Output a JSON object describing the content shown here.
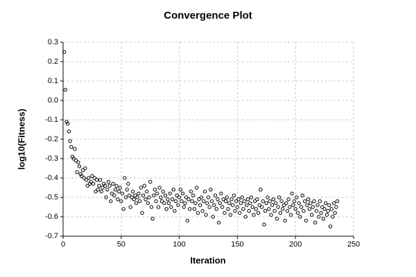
{
  "chart_data": {
    "type": "scatter",
    "title": "Convergence Plot",
    "x_label": "Iteration",
    "y_label": "log10(Fitness)",
    "x": [
      1,
      2,
      3,
      4,
      5,
      6,
      7,
      8,
      9,
      10,
      11,
      12,
      13,
      14,
      15,
      16,
      17,
      18,
      19,
      20,
      21,
      22,
      23,
      24,
      25,
      26,
      27,
      28,
      29,
      30,
      31,
      32,
      33,
      34,
      35,
      36,
      37,
      38,
      39,
      40,
      41,
      42,
      43,
      44,
      45,
      46,
      47,
      48,
      49,
      50,
      51,
      52,
      53,
      54,
      55,
      56,
      57,
      58,
      59,
      60,
      61,
      62,
      63,
      64,
      65,
      66,
      67,
      68,
      69,
      70,
      71,
      72,
      73,
      74,
      75,
      76,
      77,
      78,
      79,
      80,
      81,
      82,
      83,
      84,
      85,
      86,
      87,
      88,
      89,
      90,
      91,
      92,
      93,
      94,
      95,
      96,
      97,
      98,
      99,
      100,
      101,
      102,
      103,
      104,
      105,
      106,
      107,
      108,
      109,
      110,
      111,
      112,
      113,
      114,
      115,
      116,
      117,
      118,
      119,
      120,
      121,
      122,
      123,
      124,
      125,
      126,
      127,
      128,
      129,
      130,
      131,
      132,
      133,
      134,
      135,
      136,
      137,
      138,
      139,
      140,
      141,
      142,
      143,
      144,
      145,
      146,
      147,
      148,
      149,
      150,
      151,
      152,
      153,
      154,
      155,
      156,
      157,
      158,
      159,
      160,
      161,
      162,
      163,
      164,
      165,
      166,
      167,
      168,
      169,
      170,
      171,
      172,
      173,
      174,
      175,
      176,
      177,
      178,
      179,
      180,
      181,
      182,
      183,
      184,
      185,
      186,
      187,
      188,
      189,
      190,
      191,
      192,
      193,
      194,
      195,
      196,
      197,
      198,
      199,
      200,
      201,
      202,
      203,
      204,
      205,
      206,
      207,
      208,
      209,
      210,
      211,
      212,
      213,
      214,
      215,
      216,
      217,
      218,
      219,
      220,
      221,
      222,
      223,
      224,
      225,
      226,
      227,
      228,
      229,
      230,
      231,
      232,
      233,
      234,
      235,
      236
    ],
    "values": [
      0.25,
      0.055,
      -0.11,
      -0.12,
      -0.16,
      -0.21,
      -0.24,
      -0.29,
      -0.3,
      -0.25,
      -0.31,
      -0.37,
      -0.32,
      -0.34,
      -0.38,
      -0.39,
      -0.36,
      -0.4,
      -0.35,
      -0.41,
      -0.44,
      -0.4,
      -0.43,
      -0.42,
      -0.39,
      -0.43,
      -0.4,
      -0.47,
      -0.41,
      -0.46,
      -0.44,
      -0.41,
      -0.47,
      -0.45,
      -0.43,
      -0.44,
      -0.5,
      -0.46,
      -0.42,
      -0.44,
      -0.52,
      -0.48,
      -0.43,
      -0.49,
      -0.46,
      -0.44,
      -0.51,
      -0.47,
      -0.45,
      -0.52,
      -0.48,
      -0.56,
      -0.4,
      -0.5,
      -0.46,
      -0.43,
      -0.49,
      -0.55,
      -0.5,
      -0.47,
      -0.51,
      -0.49,
      -0.53,
      -0.5,
      -0.48,
      -0.52,
      -0.45,
      -0.58,
      -0.49,
      -0.44,
      -0.51,
      -0.47,
      -0.53,
      -0.5,
      -0.42,
      -0.55,
      -0.61,
      -0.49,
      -0.46,
      -0.52,
      -0.48,
      -0.55,
      -0.45,
      -0.5,
      -0.52,
      -0.47,
      -0.53,
      -0.49,
      -0.56,
      -0.51,
      -0.53,
      -0.48,
      -0.55,
      -0.51,
      -0.46,
      -0.57,
      -0.52,
      -0.49,
      -0.54,
      -0.5,
      -0.46,
      -0.52,
      -0.48,
      -0.55,
      -0.53,
      -0.5,
      -0.62,
      -0.51,
      -0.56,
      -0.47,
      -0.52,
      -0.49,
      -0.56,
      -0.53,
      -0.45,
      -0.58,
      -0.51,
      -0.54,
      -0.5,
      -0.57,
      -0.52,
      -0.47,
      -0.59,
      -0.53,
      -0.5,
      -0.55,
      -0.46,
      -0.52,
      -0.6,
      -0.54,
      -0.49,
      -0.56,
      -0.51,
      -0.63,
      -0.53,
      -0.48,
      -0.55,
      -0.51,
      -0.58,
      -0.52,
      -0.5,
      -0.56,
      -0.53,
      -0.59,
      -0.51,
      -0.54,
      -0.49,
      -0.57,
      -0.52,
      -0.55,
      -0.51,
      -0.58,
      -0.53,
      -0.5,
      -0.56,
      -0.52,
      -0.6,
      -0.54,
      -0.51,
      -0.57,
      -0.53,
      -0.5,
      -0.55,
      -0.59,
      -0.52,
      -0.56,
      -0.51,
      -0.58,
      -0.54,
      -0.46,
      -0.55,
      -0.52,
      -0.64,
      -0.57,
      -0.53,
      -0.5,
      -0.56,
      -0.52,
      -0.59,
      -0.54,
      -0.51,
      -0.57,
      -0.53,
      -0.61,
      -0.55,
      -0.5,
      -0.58,
      -0.52,
      -0.56,
      -0.54,
      -0.62,
      -0.53,
      -0.57,
      -0.51,
      -0.55,
      -0.59,
      -0.48,
      -0.54,
      -0.52,
      -0.56,
      -0.5,
      -0.58,
      -0.53,
      -0.6,
      -0.55,
      -0.49,
      -0.57,
      -0.52,
      -0.62,
      -0.54,
      -0.51,
      -0.56,
      -0.53,
      -0.59,
      -0.55,
      -0.52,
      -0.63,
      -0.57,
      -0.54,
      -0.6,
      -0.52,
      -0.58,
      -0.55,
      -0.61,
      -0.56,
      -0.53,
      -0.59,
      -0.57,
      -0.54,
      -0.65,
      -0.56,
      -0.6,
      -0.53,
      -0.58,
      -0.55,
      -0.52
    ],
    "color": "#000000",
    "xlim": [
      0,
      250
    ],
    "xticks": [
      0,
      50,
      100,
      150,
      200,
      250
    ],
    "ylim": [
      -0.7,
      0.3
    ],
    "yticks": [
      -0.7,
      -0.6,
      -0.5,
      -0.4,
      -0.3,
      -0.2,
      -0.1,
      {
        "value": 0,
        "label": "0.0"
      },
      0.1,
      0.2,
      0.3
    ],
    "grid": true
  }
}
